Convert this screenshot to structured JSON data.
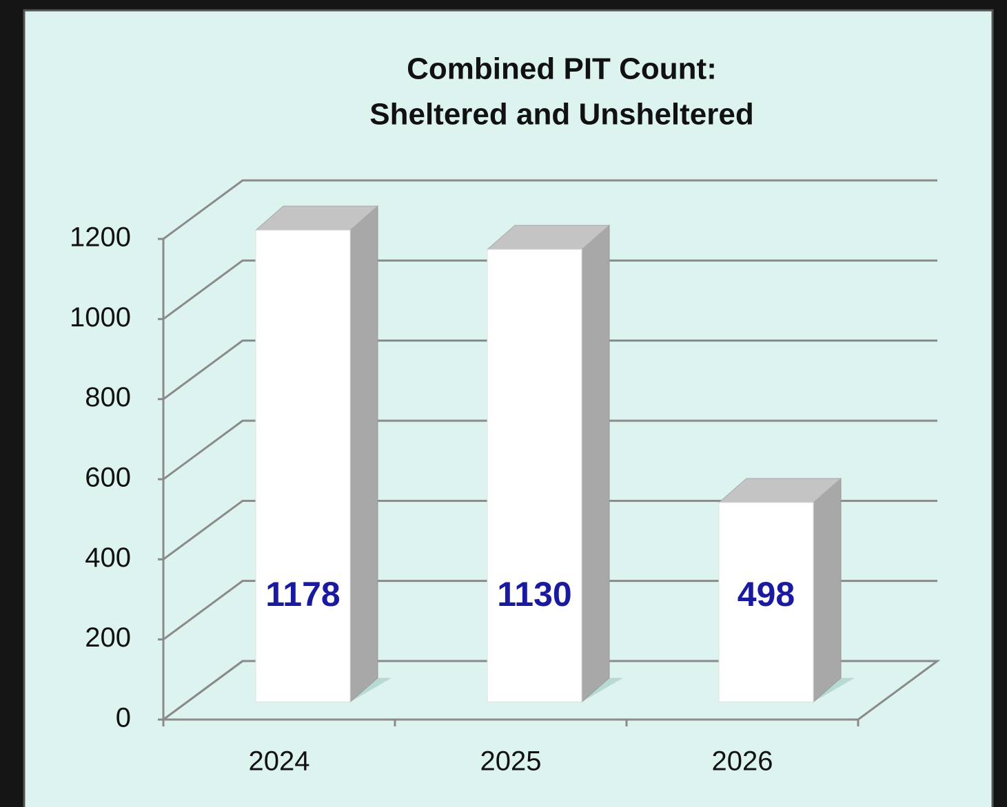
{
  "chart_data": {
    "type": "bar3d",
    "title": [
      "Combined PIT Count:",
      "Sheltered and Unsheltered"
    ],
    "categories": [
      "2024",
      "2025",
      "2026"
    ],
    "values": [
      1178,
      1130,
      498
    ],
    "color": "#ffffff",
    "value_label_color": "#1a1aa0",
    "ylim": [
      0,
      1200
    ],
    "yticks": [
      0,
      200,
      400,
      600,
      800,
      1000,
      1200
    ],
    "grid": true
  }
}
